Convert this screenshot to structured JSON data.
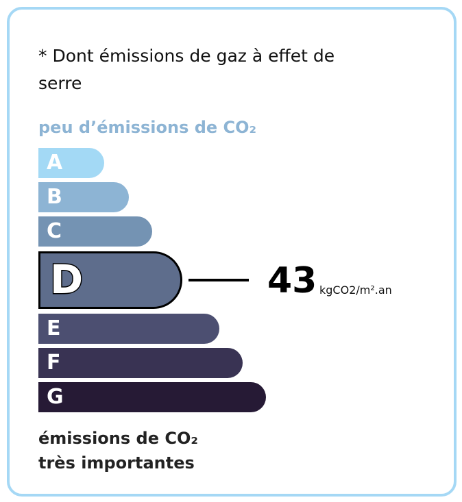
{
  "note": "* Dont émissions de gaz à effet de serre",
  "top_label": "peu d’émissions de CO₂",
  "bottom_label_1": "émissions de CO₂",
  "bottom_label_2": "très importantes",
  "classes": [
    {
      "letter": "A",
      "color": "#a3d9f5"
    },
    {
      "letter": "B",
      "color": "#8db4d4"
    },
    {
      "letter": "C",
      "color": "#7493b3"
    },
    {
      "letter": "D",
      "color": "#5e6d8c"
    },
    {
      "letter": "E",
      "color": "#4c4f71"
    },
    {
      "letter": "F",
      "color": "#393353"
    },
    {
      "letter": "G",
      "color": "#261a35"
    }
  ],
  "active_class": "D",
  "value": "43",
  "unit": "kgCO2/m².an",
  "border_color": "#a5d8f5"
}
